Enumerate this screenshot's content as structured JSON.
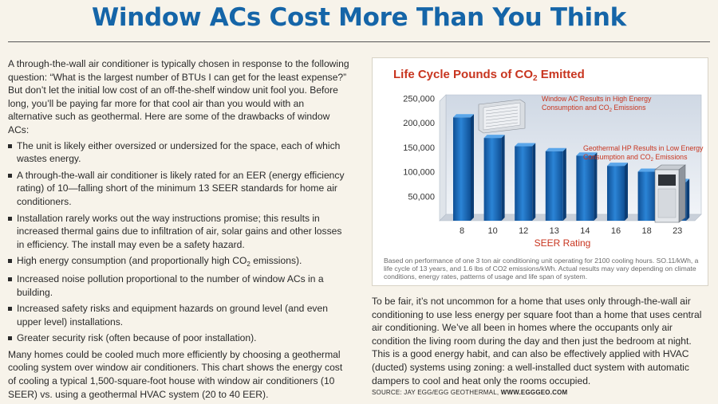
{
  "headline": "Window ACs Cost More Than You Think",
  "left": {
    "intro": "A through-the-wall air conditioner is typically chosen in response to the following question: “What is the largest number of BTUs I can get for the least expense?” But don’t let the initial low cost of an off-the-shelf window unit fool you. Before long, you’ll be paying far more for that cool air than you would with an alternative such as geothermal. Here are some of the drawbacks of window ACs:",
    "bullets": [
      "The unit is likely either oversized or undersized for the space, each of which wastes energy.",
      "A through-the-wall air conditioner is likely rated for an EER (energy efficiency rating) of 10—falling short of the minimum 13 SEER standards for home air conditioners.",
      "Installation rarely works out the way instructions promise; this results in increased thermal gains due to infiltration of air, solar gains and other losses in efficiency. The install may even be a safety hazard.",
      "High energy consumption (and proportionally high CO",
      "Increased noise pollution proportional to the number of window ACs in a building.",
      "Increased safety risks and equipment hazards on ground level (and even upper level) installations.",
      "Greater security risk (often because of poor installation)."
    ],
    "bullet4_sub": "2",
    "bullet4_tail": " emissions).",
    "closing": "Many homes could be cooled much more efficiently by choosing a geothermal cooling system over window air conditioners. This chart shows the energy cost of cooling a typical 1,500-square-foot house with window air conditioners (10 SEER) vs. using a geothermal HVAC system (20 to 40 EER)."
  },
  "chart_data": {
    "type": "bar",
    "title": "Life Cycle Pounds of CO",
    "title_sub": "2",
    "title_tail": " Emitted",
    "xlabel": "SEER Rating",
    "ylabel": "",
    "categories": [
      "8",
      "10",
      "12",
      "13",
      "14",
      "16",
      "18",
      "23"
    ],
    "values": [
      211000,
      169000,
      152000,
      142000,
      133000,
      112000,
      100000,
      79000
    ],
    "ylim": [
      0,
      270000
    ],
    "yticks": [
      50000,
      100000,
      150000,
      200000,
      250000
    ],
    "ytick_labels": [
      "50,000",
      "100,000",
      "150,000",
      "200,000",
      "250,000"
    ],
    "grid": false,
    "bar_color": "#1e6fc0",
    "annotations": {
      "high_line1": "Window AC Results in High Energy",
      "high_line2a": "Consumption and CO",
      "high_sub": "2",
      "high_line2b": " Emissions",
      "low_line1": "Geothermal HP Results in Low Energy",
      "low_line2a": "Consumption and CO",
      "low_sub": "2",
      "low_line2b": " Emissions"
    },
    "note": "Based on performance of one 3 ton air conditioning unit operating for 2100 cooling hours. SO.11/kWh, a life cycle of 13 years, and 1.6 lbs of CO2 emissions/kWh. Actual results may vary depending on climate conditions, energy rates, patterns of usage and life span of system."
  },
  "right": {
    "body": "To be fair, it’s not uncommon for a home that uses only through-the-wall air conditioning to use less energy per square foot than a home that uses central air conditioning. We’ve all been in homes where the occupants only air condition the living room during the day and then just the bedroom at night. This is a good energy habit, and can also be effectively applied with HVAC (ducted) systems using zoning: a well-installed duct system with automatic dampers to cool and heat only the rooms occupied."
  },
  "source": {
    "label": "SOURCE: JAY EGG/EGG GEOTHERMAL, ",
    "link": "WWW.EGGGEO.COM"
  }
}
